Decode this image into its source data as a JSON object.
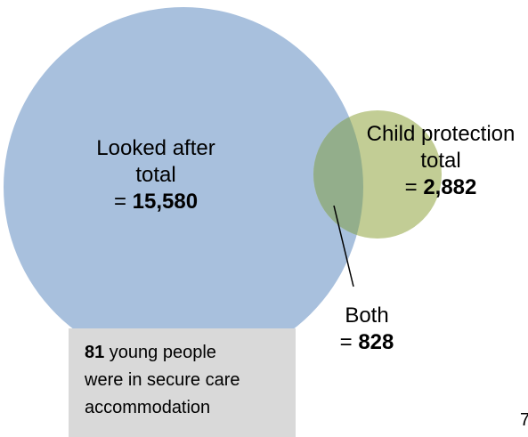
{
  "diagram": {
    "looked_after": {
      "line1": "Looked after",
      "line2": "total",
      "prefix": "= ",
      "value": "15,580",
      "fill": "#a8c0dd"
    },
    "child_protection": {
      "line1": "Child protection",
      "line2": "total",
      "prefix": "= ",
      "value": "2,882",
      "fill": "#c2cd95"
    },
    "both": {
      "line1": "Both",
      "prefix": "= ",
      "value": "828",
      "fill": "#93ae8b"
    }
  },
  "note": {
    "count": "81",
    "line1_rest": " young people",
    "line2": "were in secure care",
    "line3": "accommodation"
  },
  "page_number": "7"
}
